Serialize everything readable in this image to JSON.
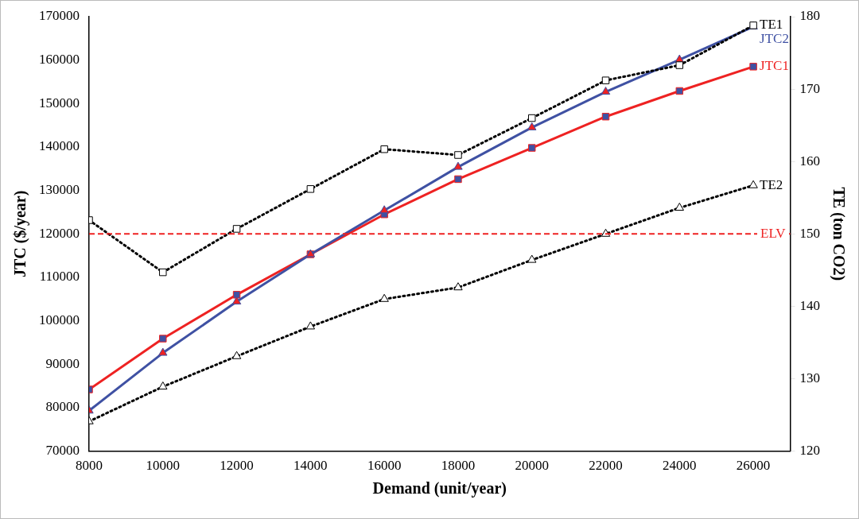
{
  "chart_data": {
    "type": "line",
    "xlabel": "Demand (unit/year)",
    "ylabel": "JTC ($/year)",
    "y2label": "TE (ton CO2)",
    "x": [
      8000,
      10000,
      12000,
      14000,
      16000,
      18000,
      20000,
      22000,
      24000,
      26000
    ],
    "xlim": [
      8000,
      27000
    ],
    "xticks": [
      8000,
      10000,
      12000,
      14000,
      16000,
      18000,
      20000,
      22000,
      24000,
      26000
    ],
    "ylim": [
      70000,
      170000
    ],
    "yticks": [
      70000,
      80000,
      90000,
      100000,
      110000,
      120000,
      130000,
      140000,
      150000,
      160000,
      170000
    ],
    "y2lim": [
      120,
      180
    ],
    "y2ticks": [
      120,
      130,
      140,
      150,
      160,
      170,
      180
    ],
    "grid": false,
    "legend": false,
    "ref_lines": [
      {
        "axis": "y",
        "value": 120000,
        "label": "ELV",
        "color": "#ee2222",
        "line_style": "dashed"
      }
    ],
    "series": [
      {
        "name": "TE1",
        "axis": "y2",
        "color": "#000000",
        "marker": "square",
        "line_style": "dotted",
        "colors": [
          "#ffffff",
          "#ffffff",
          "#ffffff",
          "#ffffff",
          "#ffffff",
          "#ffffff",
          "#ffffff",
          "#ffffff",
          "#ffffff",
          "#ffffff"
        ],
        "values": [
          151.9,
          144.7,
          150.7,
          156.2,
          161.7,
          160.9,
          166.0,
          171.2,
          173.3,
          178.8
        ]
      },
      {
        "name": "JTC2",
        "axis": "y",
        "color": "#3f51a3",
        "marker": "triangle",
        "line_style": "solid",
        "colors": [
          "#ee2222",
          "#ee2222",
          "#ee2222",
          "#ee2222",
          "#ee2222",
          "#ee2222",
          "#ee2222",
          "#ee2222",
          "#ee2222",
          "#ee2222"
        ],
        "values": [
          79300,
          92600,
          104400,
          115300,
          125400,
          135400,
          144500,
          152700,
          160100,
          167700
        ]
      },
      {
        "name": "JTC1",
        "axis": "y",
        "color": "#ee2222",
        "marker": "square",
        "line_style": "solid",
        "colors": [
          "#3f51a3",
          "#3f51a3",
          "#3f51a3",
          "#3f51a3",
          "#3f51a3",
          "#3f51a3",
          "#3f51a3",
          "#3f51a3",
          "#3f51a3",
          "#3f51a3"
        ],
        "values": [
          84200,
          95900,
          106000,
          115300,
          124500,
          132600,
          139800,
          147000,
          152900,
          158500
        ]
      },
      {
        "name": "TE2",
        "axis": "y2",
        "color": "#000000",
        "marker": "triangle",
        "line_style": "dotted",
        "colors": [
          "#ffffff",
          "#ffffff",
          "#ffffff",
          "#ffffff",
          "#ffffff",
          "#ffffff",
          "#ffffff",
          "#ffffff",
          "#ffffff",
          "#ffffff"
        ],
        "values": [
          124.1,
          128.9,
          133.1,
          137.2,
          141.0,
          142.6,
          146.4,
          150.0,
          153.6,
          156.7
        ]
      }
    ]
  }
}
